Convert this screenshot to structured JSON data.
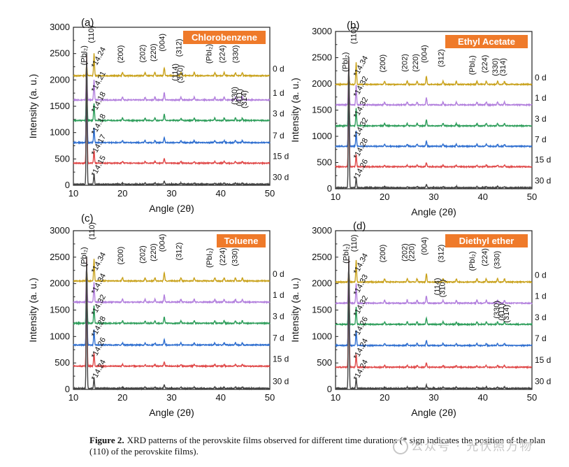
{
  "figure": {
    "caption_label": "Figure 2.",
    "caption_text": "XRD patterns of the perovskite films observed for different time durations (* sign indicates the position of the plan (110) of the perovskite films).",
    "watermark": "公众号 · 光伏照万物"
  },
  "chart_data": [
    {
      "panel": "(a)",
      "solvent": "Chlorobenzene",
      "type": "line",
      "xlabel": "Angle (2θ)",
      "ylabel": "Intensity (a. u.)",
      "xlim": [
        10,
        50
      ],
      "ylim": [
        0,
        3000
      ],
      "xticks": [
        10,
        20,
        30,
        40,
        50
      ],
      "yticks": [
        0,
        500,
        1000,
        1500,
        2000,
        2500,
        3000
      ],
      "series": [
        {
          "name": "0 d",
          "color": "#c9a21c",
          "baseline": 2080,
          "star": "14.24"
        },
        {
          "name": "1 d",
          "color": "#b27fdd",
          "baseline": 1620,
          "star": "14.21"
        },
        {
          "name": "3 d",
          "color": "#2e9e5b",
          "baseline": 1230,
          "star": "14.18"
        },
        {
          "name": "7 d",
          "color": "#2f6fd0",
          "baseline": 810,
          "star": "14.18"
        },
        {
          "name": "15 d",
          "color": "#e04848",
          "baseline": 420,
          "star": "14.17"
        },
        {
          "name": "30 d",
          "color": "#444444",
          "baseline": 20,
          "star": "14.15"
        }
      ],
      "annotations": [
        {
          "text": "(110)",
          "x": 14.1,
          "y": 2700
        },
        {
          "text": "(PbI₂)",
          "x": 12.6,
          "y": 2280
        },
        {
          "text": "(200)",
          "x": 20.1,
          "y": 2320
        },
        {
          "text": "(202)",
          "x": 24.6,
          "y": 2330
        },
        {
          "text": "(220)",
          "x": 26.8,
          "y": 2350
        },
        {
          "text": "(004)",
          "x": 28.6,
          "y": 2540
        },
        {
          "text": "(312)",
          "x": 32.0,
          "y": 2440
        },
        {
          "text": "(PbI₂)",
          "x": 38.1,
          "y": 2310
        },
        {
          "text": "(224)",
          "x": 40.8,
          "y": 2320
        },
        {
          "text": "(330)",
          "x": 43.5,
          "y": 2320
        },
        {
          "text": "(114)",
          "x": 31.2,
          "y": 1980
        },
        {
          "text": "(310)",
          "x": 32.3,
          "y": 1940
        },
        {
          "text": "(330)",
          "x": 43.3,
          "y": 1530
        },
        {
          "text": "(411)",
          "x": 44.3,
          "y": 1500
        },
        {
          "text": "(314)",
          "x": 45.3,
          "y": 1460
        }
      ]
    },
    {
      "panel": "(b)",
      "solvent": "Ethyl Acetate",
      "type": "line",
      "xlabel": "Angle (2θ)",
      "ylabel": "Intensity (a. u.)",
      "xlim": [
        10,
        50
      ],
      "ylim": [
        0,
        3000
      ],
      "xticks": [
        10,
        20,
        30,
        40,
        50
      ],
      "yticks": [
        0,
        500,
        1000,
        1500,
        2000,
        2500,
        3000
      ],
      "series": [
        {
          "name": "0 d",
          "color": "#c9a21c",
          "baseline": 1990,
          "star": "14.34"
        },
        {
          "name": "1 d",
          "color": "#b27fdd",
          "baseline": 1600,
          "star": "14.32"
        },
        {
          "name": "3 d",
          "color": "#2e9e5b",
          "baseline": 1200,
          "star": "14.32"
        },
        {
          "name": "7 d",
          "color": "#2f6fd0",
          "baseline": 810,
          "star": "14.32"
        },
        {
          "name": "15 d",
          "color": "#e04848",
          "baseline": 420,
          "star": "14.28"
        },
        {
          "name": "30 d",
          "color": "#444444",
          "baseline": 20,
          "star": "14.26"
        }
      ],
      "annotations": [
        {
          "text": "(110)",
          "x": 14.2,
          "y": 2760
        },
        {
          "text": "(PbI₂)",
          "x": 12.5,
          "y": 2230
        },
        {
          "text": "(200)",
          "x": 20.1,
          "y": 2220
        },
        {
          "text": "(202)",
          "x": 24.6,
          "y": 2230
        },
        {
          "text": "(220)",
          "x": 26.8,
          "y": 2230
        },
        {
          "text": "(004)",
          "x": 28.6,
          "y": 2400
        },
        {
          "text": "(312)",
          "x": 32.0,
          "y": 2320
        },
        {
          "text": "(PbI₂)",
          "x": 38.3,
          "y": 2170
        },
        {
          "text": "(224)",
          "x": 40.9,
          "y": 2210
        },
        {
          "text": "(330)",
          "x": 43.0,
          "y": 2150
        },
        {
          "text": "(314)",
          "x": 44.6,
          "y": 2150
        }
      ]
    },
    {
      "panel": "(c)",
      "solvent": "Toluene",
      "type": "line",
      "xlabel": "Angle (2θ)",
      "ylabel": "Intensity (a. u.)",
      "xlim": [
        10,
        50
      ],
      "ylim": [
        0,
        3000
      ],
      "xticks": [
        10,
        20,
        30,
        40,
        50
      ],
      "yticks": [
        0,
        500,
        1000,
        1500,
        2000,
        2500,
        3000
      ],
      "series": [
        {
          "name": "0 d",
          "color": "#c9a21c",
          "baseline": 2050,
          "star": "14.34"
        },
        {
          "name": "1 d",
          "color": "#b27fdd",
          "baseline": 1650,
          "star": "14.34"
        },
        {
          "name": "3 d",
          "color": "#2e9e5b",
          "baseline": 1250,
          "star": "14.32"
        },
        {
          "name": "7 d",
          "color": "#2f6fd0",
          "baseline": 840,
          "star": "14.28"
        },
        {
          "name": "15 d",
          "color": "#e04848",
          "baseline": 440,
          "star": "14.26"
        },
        {
          "name": "30 d",
          "color": "#444444",
          "baseline": 20,
          "star": "14.24"
        }
      ],
      "annotations": [
        {
          "text": "(110)",
          "x": 14.3,
          "y": 2830
        },
        {
          "text": "(PbI₂)",
          "x": 12.6,
          "y": 2320
        },
        {
          "text": "(200)",
          "x": 20.1,
          "y": 2360
        },
        {
          "text": "(202)",
          "x": 24.6,
          "y": 2380
        },
        {
          "text": "(220)",
          "x": 26.8,
          "y": 2420
        },
        {
          "text": "(004)",
          "x": 28.6,
          "y": 2600
        },
        {
          "text": "(312)",
          "x": 32.0,
          "y": 2440
        },
        {
          "text": "(PbI₂)",
          "x": 38.2,
          "y": 2300
        },
        {
          "text": "(224)",
          "x": 40.9,
          "y": 2340
        },
        {
          "text": "(330)",
          "x": 43.4,
          "y": 2330
        }
      ]
    },
    {
      "panel": "(d)",
      "solvent": "Diethyl ether",
      "type": "line",
      "xlabel": "Angle (2θ)",
      "ylabel": "Intensity (a. u.)",
      "xlim": [
        10,
        50
      ],
      "ylim": [
        0,
        3000
      ],
      "xticks": [
        10,
        20,
        30,
        40,
        50
      ],
      "yticks": [
        0,
        500,
        1000,
        1500,
        2000,
        2500,
        3000
      ],
      "series": [
        {
          "name": "0 d",
          "color": "#c9a21c",
          "baseline": 2030,
          "star": "14.34"
        },
        {
          "name": "1 d",
          "color": "#b27fdd",
          "baseline": 1630,
          "star": "14.33"
        },
        {
          "name": "3 d",
          "color": "#2e9e5b",
          "baseline": 1230,
          "star": "14.32"
        },
        {
          "name": "7 d",
          "color": "#2f6fd0",
          "baseline": 830,
          "star": "14.26"
        },
        {
          "name": "15 d",
          "color": "#e04848",
          "baseline": 420,
          "star": "14.24"
        },
        {
          "name": "30 d",
          "color": "#444444",
          "baseline": 20,
          "star": "14.24"
        }
      ],
      "annotations": [
        {
          "text": "(110)",
          "x": 14.3,
          "y": 2600
        },
        {
          "text": "(PbI₂)",
          "x": 12.6,
          "y": 2380
        },
        {
          "text": "(200)",
          "x": 20.1,
          "y": 2400
        },
        {
          "text": "(202)",
          "x": 24.6,
          "y": 2420
        },
        {
          "text": "(220)",
          "x": 26.0,
          "y": 2420
        },
        {
          "text": "(004)",
          "x": 28.6,
          "y": 2540
        },
        {
          "text": "(312)",
          "x": 32.0,
          "y": 2400
        },
        {
          "text": "(PbI₂)",
          "x": 38.3,
          "y": 2240
        },
        {
          "text": "(224)",
          "x": 40.9,
          "y": 2330
        },
        {
          "text": "(330)",
          "x": 43.4,
          "y": 2280
        },
        {
          "text": "(114)",
          "x": 31.2,
          "y": 1780
        },
        {
          "text": "(310)",
          "x": 32.3,
          "y": 1740
        },
        {
          "text": "(330)",
          "x": 43.3,
          "y": 1340
        },
        {
          "text": "(411)",
          "x": 44.3,
          "y": 1300
        },
        {
          "text": "(314)",
          "x": 45.3,
          "y": 1260
        }
      ]
    }
  ],
  "peaks": {
    "pbi2": 12.7,
    "star": 14.2,
    "others": [
      20.0,
      24.6,
      26.6,
      28.5,
      31.9,
      34.6,
      38.8,
      40.7,
      43.0,
      44.4
    ]
  }
}
